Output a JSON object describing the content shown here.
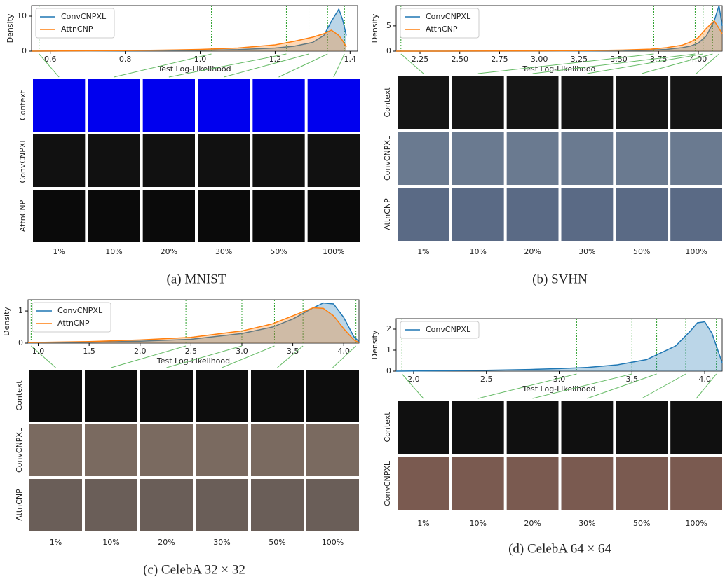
{
  "chart_data": [
    {
      "type": "density",
      "caption": "(a) MNIST",
      "xlabel": "Test Log-Likelihood",
      "ylabel": "Density",
      "legend": "upper left",
      "xlim": [
        0.55,
        1.42
      ],
      "xticks": [
        0.6,
        0.8,
        {
          "value": 1,
          "label": "1.0"
        },
        1.2,
        1.4
      ],
      "ylim": [
        0,
        13
      ],
      "yticks": [
        0,
        10
      ],
      "x": [
        0.55,
        0.7,
        0.8,
        0.9,
        1.0,
        1.1,
        1.2,
        1.25,
        1.3,
        1.33,
        1.35,
        1.37,
        1.38,
        1.39
      ],
      "series": [
        {
          "name": "ConvCNPXL",
          "color": "#1f77b4",
          "values": [
            0,
            0.05,
            0.1,
            0.15,
            0.25,
            0.45,
            0.9,
            1.4,
            2.5,
            4.5,
            8.5,
            12,
            9,
            4.5
          ]
        },
        {
          "name": "AttnCNP",
          "color": "#ff7f0e",
          "values": [
            0,
            0.1,
            0.15,
            0.3,
            0.5,
            0.9,
            1.8,
            2.8,
            4,
            5,
            6,
            4.5,
            3,
            1.2
          ]
        }
      ],
      "quantiles": [
        0.57,
        1.03,
        1.23,
        1.29,
        1.34,
        1.385
      ],
      "rows": [
        "Context",
        "ConvCNPXL",
        "AttnCNP"
      ],
      "columns": [
        "1%",
        "10%",
        "20%",
        "30%",
        "50%",
        "100%"
      ]
    },
    {
      "type": "density",
      "caption": "(b) SVHN",
      "xlabel": "Test Log-Likelihood",
      "ylabel": "Density",
      "legend": "upper left",
      "xlim": [
        2.1,
        4.15
      ],
      "xticks": [
        2.25,
        {
          "value": 2.5,
          "label": "2.50"
        },
        2.75,
        {
          "value": 3,
          "label": "3.00"
        },
        3.25,
        {
          "value": 3.5,
          "label": "3.50"
        },
        3.75,
        {
          "value": 4,
          "label": "4.00"
        }
      ],
      "ylim": [
        0,
        9
      ],
      "yticks": [
        0,
        5
      ],
      "x": [
        2.1,
        2.5,
        3.0,
        3.3,
        3.5,
        3.7,
        3.8,
        3.9,
        3.95,
        4.0,
        4.05,
        4.1,
        4.13,
        4.15
      ],
      "series": [
        {
          "name": "ConvCNPXL",
          "color": "#1f77b4",
          "values": [
            0,
            0,
            0.02,
            0.05,
            0.1,
            0.2,
            0.35,
            0.7,
            1,
            1.6,
            3,
            6,
            9,
            5
          ]
        },
        {
          "name": "AttnCNP",
          "color": "#ff7f0e",
          "values": [
            0,
            0.01,
            0.05,
            0.1,
            0.2,
            0.4,
            0.7,
            1.2,
            1.8,
            2.7,
            4.5,
            6,
            4.5,
            3.5
          ]
        }
      ],
      "quantiles": [
        2.13,
        3.72,
        3.98,
        4.03,
        4.09,
        4.13
      ],
      "rows": [
        "Context",
        "ConvCNPXL",
        "AttnCNP"
      ],
      "columns": [
        "1%",
        "10%",
        "20%",
        "30%",
        "50%",
        "100%"
      ]
    },
    {
      "type": "density",
      "caption": "(c) CelebA 32 × 32",
      "xlabel": "Test Log-Likelihood",
      "ylabel": "Density",
      "legend": "upper left",
      "xlim": [
        0.9,
        4.15
      ],
      "xticks": [
        {
          "value": 1,
          "label": "1.0"
        },
        1.5,
        {
          "value": 2,
          "label": "2.0"
        },
        2.5,
        {
          "value": 3,
          "label": "3.0"
        },
        3.5,
        {
          "value": 4,
          "label": "4.0"
        }
      ],
      "ylim": [
        0,
        1.35
      ],
      "yticks": [
        0,
        1
      ],
      "x": [
        0.9,
        1.5,
        2.0,
        2.5,
        3.0,
        3.3,
        3.5,
        3.7,
        3.8,
        3.9,
        4.0,
        4.1,
        4.15
      ],
      "series": [
        {
          "name": "ConvCNPXL",
          "color": "#1f77b4",
          "values": [
            0.01,
            0.03,
            0.06,
            0.12,
            0.3,
            0.5,
            0.75,
            1.1,
            1.25,
            1.22,
            0.8,
            0.2,
            0.05
          ]
        },
        {
          "name": "AttnCNP",
          "color": "#ff7f0e",
          "values": [
            0.02,
            0.05,
            0.1,
            0.18,
            0.38,
            0.6,
            0.85,
            1.1,
            1.08,
            0.85,
            0.45,
            0.1,
            0.02
          ]
        }
      ],
      "quantiles": [
        0.93,
        2.45,
        3.0,
        3.32,
        3.6,
        4.12
      ],
      "rows": [
        "Context",
        "ConvCNPXL",
        "AttnCNP"
      ],
      "columns": [
        "1%",
        "10%",
        "20%",
        "30%",
        "50%",
        "100%"
      ]
    },
    {
      "type": "density",
      "caption": "(d) CelebA 64 × 64",
      "xlabel": "Test Log-Likelihood",
      "ylabel": "Density",
      "legend": "upper left",
      "xlim": [
        1.88,
        4.12
      ],
      "xticks": [
        {
          "value": 2,
          "label": "2.0"
        },
        2.5,
        {
          "value": 3,
          "label": "3.0"
        },
        3.5,
        {
          "value": 4,
          "label": "4.0"
        }
      ],
      "ylim": [
        0,
        2.5
      ],
      "yticks": [
        0,
        1,
        2
      ],
      "x": [
        1.88,
        2.2,
        2.5,
        2.8,
        3.0,
        3.2,
        3.4,
        3.6,
        3.8,
        3.9,
        3.95,
        4.0,
        4.05,
        4.1,
        4.12
      ],
      "series": [
        {
          "name": "ConvCNPXL",
          "color": "#1f77b4",
          "values": [
            0,
            0.02,
            0.04,
            0.08,
            0.12,
            0.18,
            0.3,
            0.55,
            1.2,
            1.9,
            2.3,
            2.35,
            1.8,
            0.8,
            0.4
          ]
        }
      ],
      "quantiles": [
        1.92,
        3.12,
        3.5,
        3.67,
        3.87,
        4.08
      ],
      "rows": [
        "Context",
        "ConvCNPXL"
      ],
      "columns": [
        "1%",
        "10%",
        "20%",
        "30%",
        "50%",
        "100%"
      ]
    }
  ]
}
